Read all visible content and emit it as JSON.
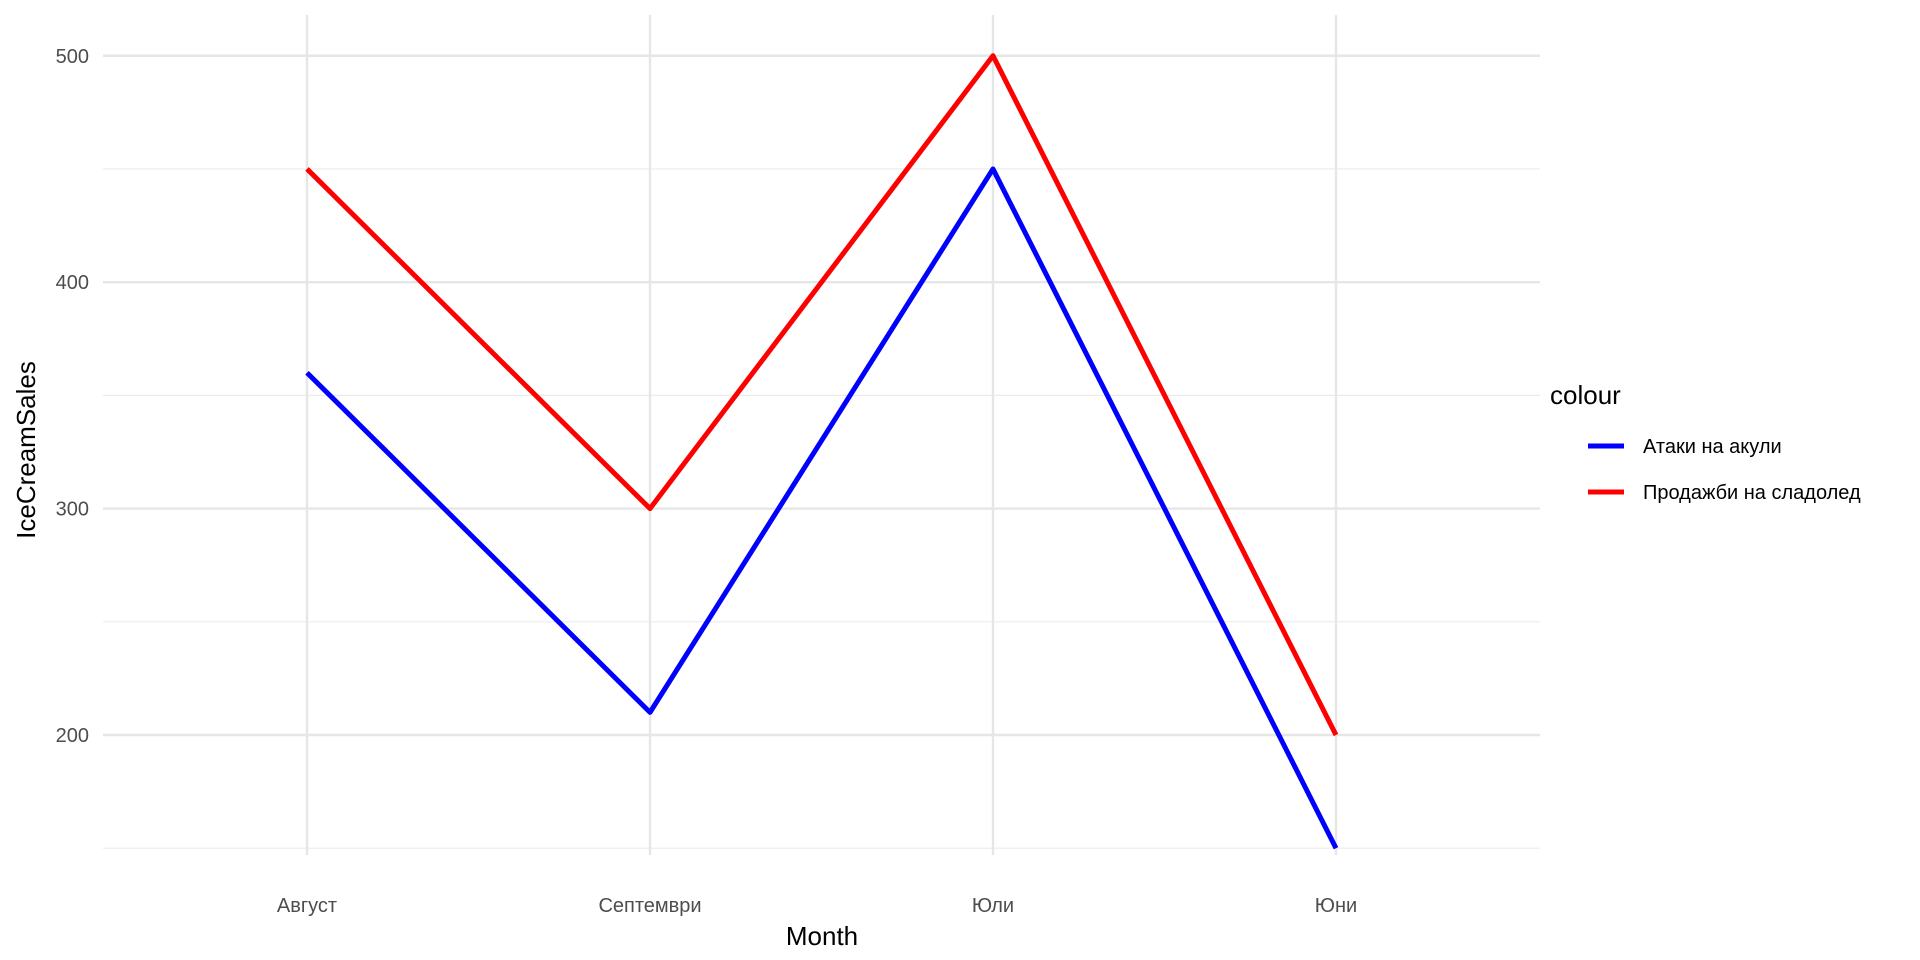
{
  "chart_data": {
    "type": "line",
    "xlabel": "Month",
    "ylabel": "IceCreamSales",
    "categories": [
      "Август",
      "Септември",
      "Юли",
      "Юни"
    ],
    "ylim": [
      147,
      518
    ],
    "yticks": [
      200,
      300,
      400,
      500
    ],
    "grid": true,
    "legend": {
      "title": "colour",
      "position": "right"
    },
    "series": [
      {
        "name": "Атаки на акули",
        "color": "#0000FF",
        "values": [
          360,
          210,
          450,
          150
        ]
      },
      {
        "name": "Продажби на сладолед",
        "color": "#FF0000",
        "values": [
          450,
          300,
          500,
          200
        ]
      }
    ]
  }
}
